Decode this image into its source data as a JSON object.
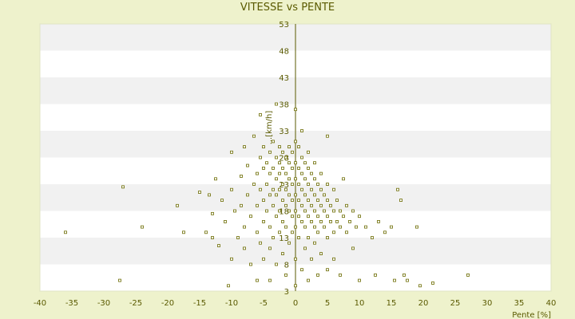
{
  "chart_data": {
    "type": "scatter",
    "title": "VITESSE vs PENTE",
    "xlabel": "Pente [%]",
    "ylabel": "...[km/h]",
    "xlim": [
      -40,
      40
    ],
    "ylim": [
      3,
      53
    ],
    "xticks": [
      -40,
      -35,
      -30,
      -25,
      -20,
      -15,
      -10,
      -5,
      0,
      5,
      10,
      15,
      20,
      25,
      30,
      35,
      40
    ],
    "yticks": [
      3,
      8,
      13,
      18,
      23,
      28,
      33,
      38,
      43,
      48,
      53
    ],
    "grid": "horizontal alternating bands",
    "legend": "none",
    "colors": {
      "marker": "#6b6b00",
      "background": "#eef2cc",
      "band_light": "#ffffff",
      "band_dark": "#f1f1f1",
      "axis": "#5a5a00"
    },
    "series": [
      {
        "points": [
          [
            -36,
            14
          ],
          [
            -27.5,
            5
          ],
          [
            -27,
            22.5
          ],
          [
            -24,
            15
          ],
          [
            -18.5,
            19
          ],
          [
            -17.5,
            14
          ],
          [
            -15,
            21.5
          ],
          [
            -14,
            14
          ],
          [
            -13.5,
            21
          ],
          [
            -13,
            17.5
          ],
          [
            -13,
            13
          ],
          [
            -12.5,
            24
          ],
          [
            -12,
            11.5
          ],
          [
            -11.5,
            20
          ],
          [
            -11,
            16
          ],
          [
            -10.5,
            4
          ],
          [
            -10,
            29
          ],
          [
            -10,
            22
          ],
          [
            -10,
            9
          ],
          [
            -9.5,
            18
          ],
          [
            -9,
            13
          ],
          [
            -8.5,
            24.5
          ],
          [
            -8.5,
            19
          ],
          [
            -8,
            30
          ],
          [
            -8,
            15
          ],
          [
            -8,
            11
          ],
          [
            -7.5,
            26.5
          ],
          [
            -7.5,
            21
          ],
          [
            -7,
            17
          ],
          [
            -7,
            8
          ],
          [
            -6.5,
            32
          ],
          [
            -6.5,
            23
          ],
          [
            -6,
            25
          ],
          [
            -6,
            19
          ],
          [
            -6,
            14
          ],
          [
            -6,
            5
          ],
          [
            -5.5,
            36
          ],
          [
            -5.5,
            28
          ],
          [
            -5.5,
            22
          ],
          [
            -5.5,
            12
          ],
          [
            -5,
            30
          ],
          [
            -5,
            26
          ],
          [
            -5,
            20
          ],
          [
            -5,
            16
          ],
          [
            -5,
            9
          ],
          [
            -4.5,
            27
          ],
          [
            -4.5,
            23
          ],
          [
            -4.5,
            18
          ],
          [
            -4,
            29
          ],
          [
            -4,
            25
          ],
          [
            -4,
            21
          ],
          [
            -4,
            15
          ],
          [
            -4,
            11
          ],
          [
            -4,
            5
          ],
          [
            -3.5,
            31
          ],
          [
            -3.5,
            26
          ],
          [
            -3.5,
            22
          ],
          [
            -3.5,
            19
          ],
          [
            -3.5,
            13
          ],
          [
            -3,
            38
          ],
          [
            -3,
            28
          ],
          [
            -3,
            24
          ],
          [
            -3,
            21
          ],
          [
            -3,
            17
          ],
          [
            -3,
            8
          ],
          [
            -2.5,
            30
          ],
          [
            -2.5,
            27
          ],
          [
            -2.5,
            25
          ],
          [
            -2.5,
            22
          ],
          [
            -2.5,
            18
          ],
          [
            -2.5,
            14
          ],
          [
            -2,
            29
          ],
          [
            -2,
            26
          ],
          [
            -2,
            23
          ],
          [
            -2,
            20
          ],
          [
            -2,
            16
          ],
          [
            -2,
            10
          ],
          [
            -1.5,
            28
          ],
          [
            -1.5,
            25
          ],
          [
            -1.5,
            22
          ],
          [
            -1.5,
            19
          ],
          [
            -1.5,
            15
          ],
          [
            -1.5,
            6
          ],
          [
            -1,
            30
          ],
          [
            -1,
            27
          ],
          [
            -1,
            24
          ],
          [
            -1,
            21
          ],
          [
            -1,
            18
          ],
          [
            -1,
            12
          ],
          [
            -0.5,
            29
          ],
          [
            -0.5,
            26
          ],
          [
            -0.5,
            23
          ],
          [
            -0.5,
            20
          ],
          [
            -0.5,
            17
          ],
          [
            -0.5,
            14
          ],
          [
            0,
            37
          ],
          [
            0,
            31
          ],
          [
            0,
            27
          ],
          [
            0,
            24
          ],
          [
            0,
            21
          ],
          [
            0,
            18
          ],
          [
            0,
            15
          ],
          [
            0,
            9
          ],
          [
            0,
            4
          ],
          [
            0.5,
            30
          ],
          [
            0.5,
            26
          ],
          [
            0.5,
            23
          ],
          [
            0.5,
            20
          ],
          [
            0.5,
            17
          ],
          [
            0.5,
            13
          ],
          [
            1,
            33
          ],
          [
            1,
            28
          ],
          [
            1,
            25
          ],
          [
            1,
            22
          ],
          [
            1,
            19
          ],
          [
            1,
            16
          ],
          [
            1,
            7
          ],
          [
            1.5,
            27
          ],
          [
            1.5,
            24
          ],
          [
            1.5,
            21
          ],
          [
            1.5,
            18
          ],
          [
            1.5,
            15
          ],
          [
            1.5,
            11
          ],
          [
            2,
            29
          ],
          [
            2,
            26
          ],
          [
            2,
            23
          ],
          [
            2,
            20
          ],
          [
            2,
            17
          ],
          [
            2,
            13
          ],
          [
            2,
            5
          ],
          [
            2.5,
            25
          ],
          [
            2.5,
            22
          ],
          [
            2.5,
            19
          ],
          [
            2.5,
            16
          ],
          [
            2.5,
            9
          ],
          [
            3,
            27
          ],
          [
            3,
            24
          ],
          [
            3,
            21
          ],
          [
            3,
            18
          ],
          [
            3,
            15
          ],
          [
            3,
            12
          ],
          [
            3.5,
            23
          ],
          [
            3.5,
            20
          ],
          [
            3.5,
            17
          ],
          [
            3.5,
            14
          ],
          [
            3.5,
            6
          ],
          [
            4,
            25
          ],
          [
            4,
            22
          ],
          [
            4,
            19
          ],
          [
            4,
            16
          ],
          [
            4,
            10
          ],
          [
            4.5,
            21
          ],
          [
            4.5,
            18
          ],
          [
            4.5,
            15
          ],
          [
            5,
            32
          ],
          [
            5,
            23
          ],
          [
            5,
            20
          ],
          [
            5,
            17
          ],
          [
            5,
            13
          ],
          [
            5,
            7
          ],
          [
            5.5,
            19
          ],
          [
            5.5,
            16
          ],
          [
            6,
            22
          ],
          [
            6,
            18
          ],
          [
            6,
            14
          ],
          [
            6,
            9
          ],
          [
            6.5,
            20
          ],
          [
            6.5,
            16
          ],
          [
            7,
            18
          ],
          [
            7,
            15
          ],
          [
            7,
            6
          ],
          [
            7.5,
            24
          ],
          [
            7.5,
            17
          ],
          [
            8,
            19
          ],
          [
            8,
            14
          ],
          [
            8.5,
            16
          ],
          [
            9,
            18
          ],
          [
            9,
            11
          ],
          [
            9.5,
            15
          ],
          [
            10,
            17
          ],
          [
            10,
            5
          ],
          [
            11,
            15
          ],
          [
            12,
            13
          ],
          [
            12.5,
            6
          ],
          [
            13,
            16
          ],
          [
            14,
            14
          ],
          [
            15,
            15
          ],
          [
            15.5,
            5
          ],
          [
            16,
            22
          ],
          [
            16.5,
            20
          ],
          [
            17,
            6
          ],
          [
            17.5,
            5
          ],
          [
            19,
            15
          ],
          [
            19.5,
            4
          ],
          [
            21.5,
            4.5
          ],
          [
            27,
            6
          ]
        ]
      }
    ]
  }
}
